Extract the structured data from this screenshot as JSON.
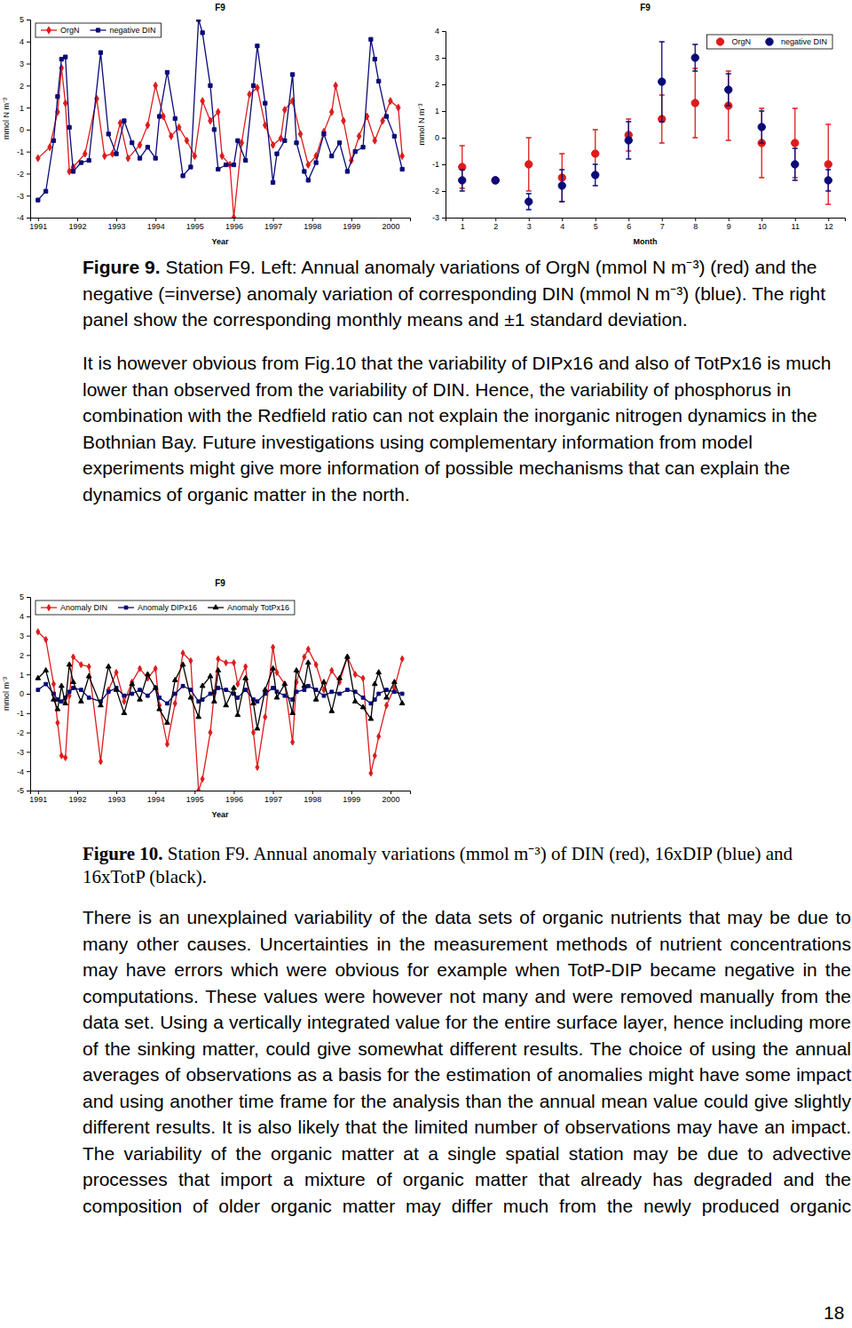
{
  "chart_data": [
    {
      "type": "line",
      "title": "F9",
      "xlabel": "Year",
      "ylabel": "mmol N m⁻³",
      "xlim": [
        1990.8,
        2000.5
      ],
      "xticks": [
        1991,
        1992,
        1993,
        1994,
        1995,
        1996,
        1997,
        1998,
        1999,
        2000
      ],
      "ylim": [
        -4,
        5
      ],
      "yticks": [
        -4,
        -3,
        -2,
        -1,
        0,
        1,
        2,
        3,
        4,
        5
      ],
      "grid": false,
      "legend": "upper left",
      "series": [
        {
          "name": "OrgN",
          "color": "#dd1c1c",
          "marker": "diamond",
          "x": [
            1991.0,
            1991.3,
            1991.5,
            1991.6,
            1991.7,
            1991.8,
            1991.9,
            1992.2,
            1992.5,
            1992.7,
            1992.9,
            1993.1,
            1993.3,
            1993.6,
            1993.8,
            1994.0,
            1994.2,
            1994.4,
            1994.6,
            1994.8,
            1995.0,
            1995.2,
            1995.4,
            1995.6,
            1995.7,
            1995.9,
            1996.0,
            1996.2,
            1996.4,
            1996.6,
            1996.8,
            1997.0,
            1997.2,
            1997.3,
            1997.5,
            1997.7,
            1997.9,
            1998.1,
            1998.3,
            1998.5,
            1998.6,
            1998.8,
            1999.0,
            1999.2,
            1999.4,
            1999.6,
            1999.8,
            2000.0,
            2000.2,
            2000.3
          ],
          "values": [
            -1.3,
            -0.8,
            0.8,
            2.8,
            1.2,
            -1.9,
            -1.7,
            -1.1,
            1.4,
            -1.2,
            -1.1,
            0.3,
            -1.3,
            -0.7,
            0.2,
            2.0,
            0.6,
            -0.3,
            0.1,
            -0.5,
            -1.2,
            1.3,
            0.4,
            0.8,
            -1.2,
            -1.6,
            -4.0,
            -0.6,
            1.6,
            1.9,
            0.2,
            -0.7,
            -0.4,
            0.9,
            1.3,
            -0.2,
            -1.6,
            -1.2,
            -0.1,
            0.8,
            2.0,
            0.4,
            -1.4,
            -0.3,
            0.6,
            -0.5,
            0.4,
            1.3,
            1.0,
            -1.2
          ]
        },
        {
          "name": "negative DIN",
          "color": "#0a0a78",
          "marker": "square",
          "x": [
            1991.0,
            1991.2,
            1991.4,
            1991.5,
            1991.6,
            1991.7,
            1991.8,
            1991.9,
            1992.1,
            1992.3,
            1992.6,
            1992.8,
            1993.0,
            1993.2,
            1993.4,
            1993.6,
            1993.8,
            1994.0,
            1994.1,
            1994.3,
            1994.5,
            1994.7,
            1994.9,
            1995.1,
            1995.2,
            1995.4,
            1995.5,
            1995.6,
            1995.8,
            1996.0,
            1996.1,
            1996.3,
            1996.5,
            1996.6,
            1996.8,
            1997.0,
            1997.1,
            1997.3,
            1997.5,
            1997.6,
            1997.8,
            1997.9,
            1998.1,
            1998.3,
            1998.5,
            1998.7,
            1998.9,
            1999.1,
            1999.3,
            1999.5,
            1999.6,
            1999.7,
            1999.9,
            2000.1,
            2000.3
          ],
          "values": [
            -3.2,
            -2.8,
            -0.5,
            1.5,
            3.2,
            3.3,
            0.1,
            -1.9,
            -1.5,
            -1.4,
            3.5,
            -0.2,
            -1.1,
            0.4,
            -0.6,
            -1.3,
            -0.8,
            -1.3,
            0.6,
            2.6,
            0.5,
            -2.1,
            -1.7,
            5.0,
            4.4,
            2.0,
            0.0,
            -1.8,
            -1.6,
            -1.6,
            -0.5,
            -1.4,
            2.0,
            3.8,
            1.2,
            -2.4,
            -1.1,
            -0.5,
            2.5,
            -0.6,
            -1.9,
            -2.3,
            -1.5,
            -0.2,
            -1.2,
            -0.6,
            -1.9,
            -1.0,
            -0.8,
            4.1,
            3.2,
            2.2,
            0.6,
            -0.3,
            -1.8
          ]
        }
      ]
    },
    {
      "type": "scatter",
      "title": "F9",
      "xlabel": "Month",
      "ylabel": "mmol N m⁻³",
      "x": [
        1,
        2,
        3,
        4,
        5,
        6,
        7,
        8,
        9,
        10,
        11,
        12
      ],
      "xlim": [
        0.5,
        12.5
      ],
      "xticks": [
        1,
        2,
        3,
        4,
        5,
        6,
        7,
        8,
        9,
        10,
        11,
        12
      ],
      "ylim": [
        -3,
        4
      ],
      "yticks": [
        -3,
        -2,
        -1,
        0,
        1,
        2,
        3,
        4
      ],
      "grid": false,
      "legend": "upper right",
      "series": [
        {
          "name": "OrgN",
          "color": "#dd1c1c",
          "marker": "circle",
          "values": [
            -1.1,
            -1.6,
            -1.0,
            -1.5,
            -0.6,
            0.1,
            0.7,
            1.3,
            1.2,
            -0.2,
            -0.2,
            -1.0
          ],
          "errors": [
            0.8,
            0.1,
            1.0,
            0.9,
            0.9,
            0.6,
            0.9,
            1.3,
            1.3,
            1.3,
            1.3,
            1.5
          ]
        },
        {
          "name": "negative DIN",
          "color": "#0a0a78",
          "marker": "circle",
          "values": [
            -1.6,
            -1.6,
            -2.4,
            -1.8,
            -1.4,
            -0.1,
            2.1,
            3.0,
            1.8,
            0.4,
            -1.0,
            -1.6
          ],
          "errors": [
            0.4,
            0.1,
            0.3,
            0.6,
            0.4,
            0.7,
            1.5,
            0.5,
            0.6,
            0.6,
            0.6,
            0.4
          ]
        }
      ]
    },
    {
      "type": "line",
      "title": "F9",
      "xlabel": "Year",
      "ylabel": "mmol m⁻³",
      "x": [
        1991.0,
        1991.2,
        1991.4,
        1991.5,
        1991.6,
        1991.7,
        1991.8,
        1991.9,
        1992.1,
        1992.3,
        1992.6,
        1992.8,
        1993.0,
        1993.2,
        1993.4,
        1993.6,
        1993.8,
        1994.0,
        1994.1,
        1994.3,
        1994.5,
        1994.7,
        1994.9,
        1995.1,
        1995.2,
        1995.4,
        1995.5,
        1995.6,
        1995.8,
        1996.0,
        1996.1,
        1996.3,
        1996.5,
        1996.6,
        1996.8,
        1997.0,
        1997.1,
        1997.3,
        1997.5,
        1997.6,
        1997.8,
        1997.9,
        1998.1,
        1998.3,
        1998.5,
        1998.7,
        1998.9,
        1999.1,
        1999.3,
        1999.5,
        1999.6,
        1999.7,
        1999.9,
        2000.1,
        2000.3
      ],
      "xlim": [
        1990.8,
        2000.5
      ],
      "xticks": [
        1991,
        1992,
        1993,
        1994,
        1995,
        1996,
        1997,
        1998,
        1999,
        2000
      ],
      "ylim": [
        -5,
        5
      ],
      "yticks": [
        -5,
        -4,
        -3,
        -2,
        -1,
        0,
        1,
        2,
        3,
        4,
        5
      ],
      "grid": false,
      "legend": "upper left",
      "series": [
        {
          "name": "Anomaly DIN",
          "color": "#dd1c1c",
          "marker": "diamond",
          "values": [
            3.2,
            2.8,
            0.5,
            -1.5,
            -3.2,
            -3.3,
            -0.1,
            1.9,
            1.5,
            1.4,
            -3.5,
            0.2,
            1.1,
            -0.4,
            0.6,
            1.3,
            0.8,
            1.3,
            -0.6,
            -2.6,
            -0.5,
            2.1,
            1.7,
            -5.0,
            -4.4,
            -2.0,
            0.0,
            1.8,
            1.6,
            1.6,
            0.5,
            1.4,
            -2.0,
            -3.8,
            -1.2,
            2.4,
            1.1,
            0.5,
            -2.5,
            0.6,
            1.9,
            2.3,
            1.5,
            0.2,
            1.2,
            0.6,
            1.9,
            1.0,
            0.8,
            -4.1,
            -3.2,
            -2.2,
            -0.6,
            0.3,
            1.8
          ]
        },
        {
          "name": "Anomaly DIPx16",
          "color": "#0a0a78",
          "marker": "square",
          "values": [
            0.2,
            0.5,
            0.0,
            -0.3,
            -0.4,
            -0.2,
            0.1,
            0.3,
            0.2,
            -0.2,
            -0.4,
            0.1,
            0.3,
            -0.1,
            0.0,
            0.2,
            -0.1,
            0.3,
            -0.2,
            -0.5,
            0.0,
            0.4,
            0.2,
            -0.4,
            -0.3,
            0.0,
            0.1,
            0.3,
            0.2,
            0.0,
            -0.2,
            0.2,
            -0.3,
            -0.4,
            0.0,
            0.3,
            0.1,
            -0.1,
            -0.3,
            0.1,
            0.2,
            0.4,
            0.2,
            -0.1,
            0.1,
            0.0,
            0.2,
            0.1,
            -0.2,
            -0.5,
            -0.3,
            0.0,
            0.2,
            0.1,
            0.0
          ]
        },
        {
          "name": "Anomaly TotPx16",
          "color": "#000000",
          "marker": "triangle",
          "values": [
            0.8,
            1.2,
            -0.3,
            -0.8,
            0.4,
            -0.5,
            1.5,
            0.6,
            -0.4,
            0.9,
            -0.6,
            1.4,
            0.2,
            -1.0,
            0.5,
            -0.3,
            1.0,
            0.3,
            -0.8,
            -1.5,
            0.7,
            1.5,
            -0.2,
            -1.2,
            0.4,
            0.9,
            -0.4,
            1.2,
            -0.6,
            0.3,
            -1.1,
            0.8,
            -0.5,
            -1.8,
            0.2,
            1.3,
            -0.2,
            0.5,
            -1.0,
            1.2,
            0.4,
            1.6,
            -0.3,
            0.6,
            -0.9,
            0.8,
            1.9,
            -0.4,
            -0.7,
            -1.3,
            0.5,
            1.1,
            -0.2,
            0.6,
            -0.5
          ]
        }
      ]
    }
  ],
  "figure_captions": [
    {
      "label": "Figure 9.",
      "text": "Station F9. Left: Annual anomaly variations of OrgN (mmol N m⁻³) (red) and the negative (=inverse) anomaly variation of corresponding DIN (mmol N m⁻³) (blue). The right panel show the corresponding monthly means and ±1 standard deviation."
    },
    {
      "label": "Figure 10.",
      "text": "Station F9. Annual anomaly variations (mmol m⁻³) of DIN (red), 16xDIP (blue) and 16xTotP (black)."
    }
  ],
  "paragraphs": [
    "It is however obvious from Fig.10 that the variability of DIPx16 and also of TotPx16 is much lower than observed from the variability of DIN. Hence, the variability of phosphorus in combination with the Redfield ratio can not explain the inorganic nitrogen dynamics in the Bothnian Bay. Future investigations using complementary information from model experiments might give more information of possible mechanisms that can explain the dynamics of organic matter in the north.",
    "There is an unexplained variability of the data sets of organic nutrients that may be due to many other causes. Uncertainties in the measurement methods of nutrient concentrations may have errors which were obvious for example when TotP-DIP became negative in the computations. These values were however not many and were removed manually from the data set. Using a vertically integrated value for the entire surface layer, hence including more of the sinking matter, could give somewhat different results. The choice of using the annual averages of observations as a basis for the estimation of anomalies might have some impact and using another time frame for the analysis than the annual mean value could give slightly different results. It is also likely that the limited number of observations may have an impact. The variability of the organic matter at a single spatial station may be due to advective processes that import a mixture of organic matter that already has degraded and the composition of older organic matter may differ much from the newly produced organic"
  ],
  "page_number": 18
}
